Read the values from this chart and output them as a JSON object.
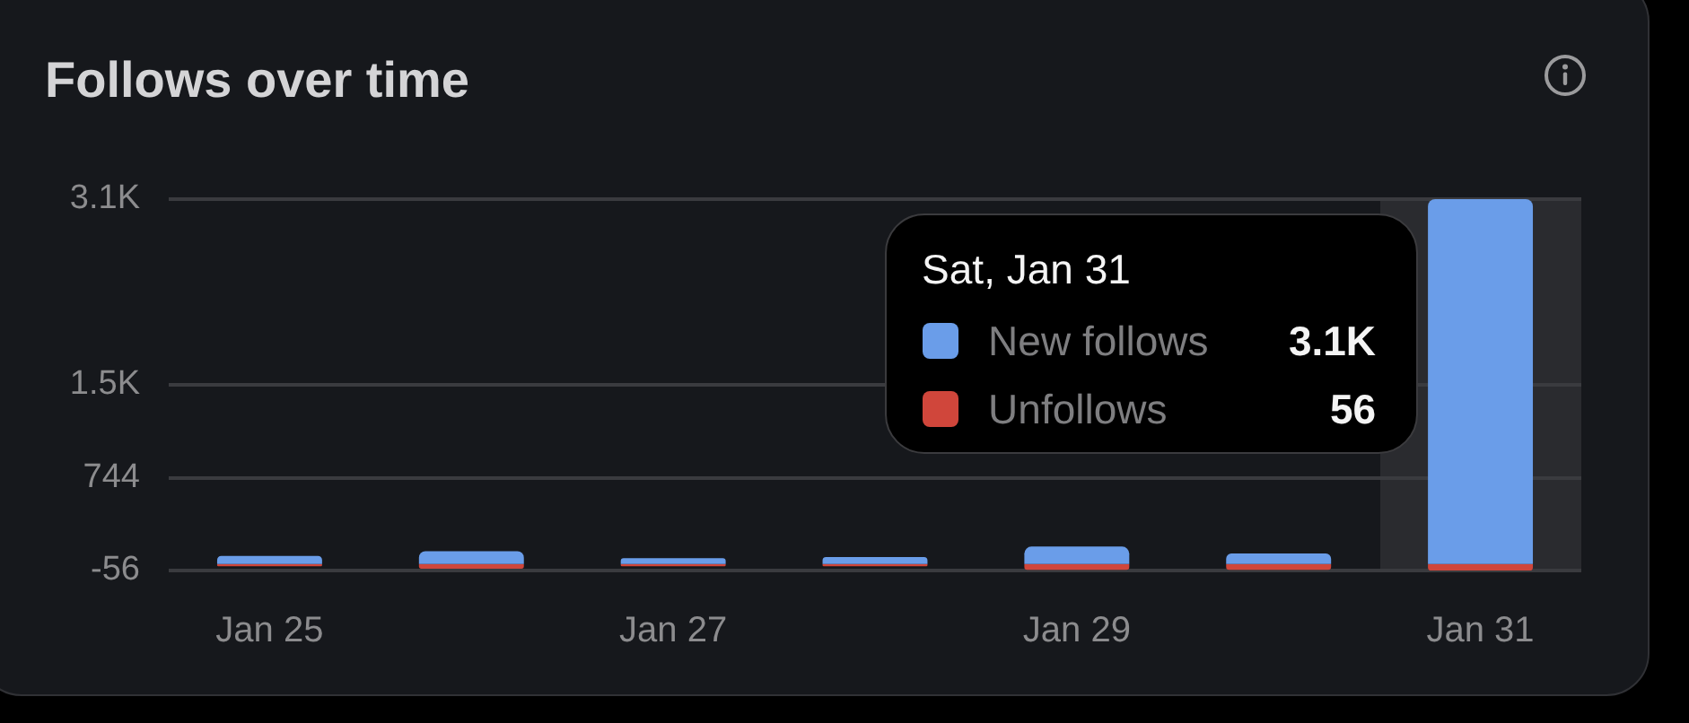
{
  "chart_data": {
    "type": "bar",
    "title": "Follows over time",
    "categories": [
      "Jan 25",
      null,
      "Jan 27",
      null,
      "Jan 29",
      null,
      "Jan 31"
    ],
    "series": [
      {
        "name": "New follows",
        "color": "#6a9de9",
        "values": [
          70,
          110,
          50,
          60,
          150,
          90,
          3144
        ]
      },
      {
        "name": "Unfollows",
        "color": "#d0463b",
        "values": [
          -20,
          -40,
          -20,
          -20,
          -50,
          -50,
          -56
        ]
      }
    ],
    "stacked": true,
    "ylim": [
      -56,
      3144
    ],
    "yticks": [
      -56,
      744,
      {
        "value": 1544,
        "label": "1.5K"
      },
      {
        "value": 3144,
        "label": "3.1K"
      }
    ],
    "grid": "y",
    "legend": "top right",
    "annotations": [
      "Sat, Jan 31",
      "3.1K",
      "56"
    ]
  }
}
